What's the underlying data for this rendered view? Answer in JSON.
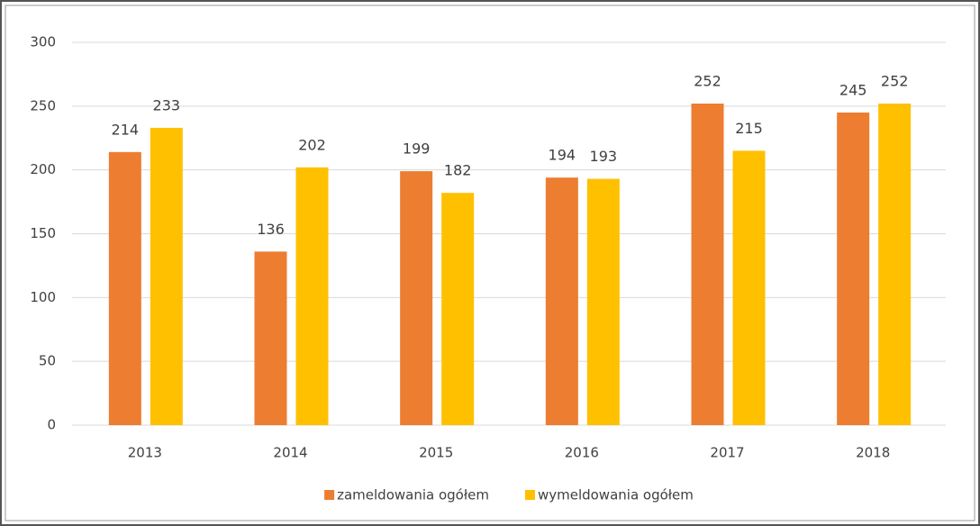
{
  "chart_data": {
    "type": "bar",
    "categories": [
      "2013",
      "2014",
      "2015",
      "2016",
      "2017",
      "2018"
    ],
    "series": [
      {
        "name": "zameldowania ogółem",
        "color": "#ed7d31",
        "values": [
          214,
          136,
          199,
          194,
          252,
          245
        ]
      },
      {
        "name": "wymeldowania ogółem",
        "color": "#ffc000",
        "values": [
          233,
          202,
          182,
          193,
          215,
          252
        ]
      }
    ],
    "ylim": [
      0,
      300
    ],
    "yticks": [
      0,
      50,
      100,
      150,
      200,
      250,
      300
    ],
    "grid": true,
    "legend": "bottom"
  }
}
